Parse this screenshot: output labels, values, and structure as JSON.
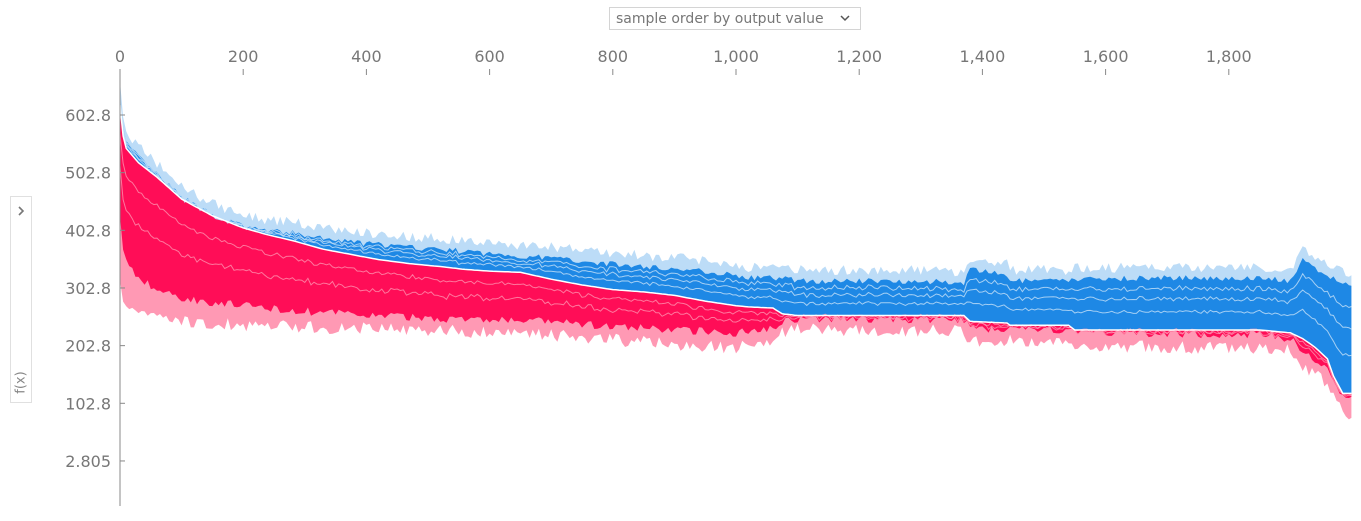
{
  "controls": {
    "order_select_value": "sample order by output value",
    "chevron_icon": "chevron-down-icon",
    "side_toggle_icon": "chevron-right-icon",
    "side_label": "f(x)"
  },
  "chart_data": {
    "type": "area",
    "title": "",
    "xlabel": "",
    "ylabel": "f(x)",
    "xlim": [
      0,
      2000
    ],
    "ylim": [
      -47,
      683
    ],
    "x_ticks": [
      0,
      200,
      400,
      600,
      800,
      1000,
      1200,
      1400,
      1600,
      1800
    ],
    "x_tick_labels": [
      "0",
      "200",
      "400",
      "600",
      "800",
      "1,000",
      "1,200",
      "1,400",
      "1,600",
      "1,800"
    ],
    "y_ticks": [
      602.8,
      502.8,
      402.8,
      302.8,
      202.8,
      102.8,
      2.805
    ],
    "y_tick_labels": [
      "602.8",
      "502.8",
      "402.8",
      "302.8",
      "202.8",
      "102.8",
      "2.805"
    ],
    "colors": {
      "positive": "#ff0d57",
      "positive_light": "#ff99b4",
      "negative": "#1e88e5",
      "negative_light": "#bcdcf7",
      "separator": "#ffffff",
      "axis": "#888888"
    },
    "profile": {
      "x": [
        0,
        3,
        10,
        30,
        60,
        100,
        150,
        200,
        240,
        280,
        330,
        380,
        420,
        470,
        520,
        560,
        600,
        650,
        700,
        750,
        800,
        850,
        900,
        950,
        1000,
        1020,
        1060,
        1075,
        1100,
        1200,
        1300,
        1370,
        1380,
        1440,
        1445,
        1540,
        1550,
        1650,
        1750,
        1850,
        1900,
        1920,
        1940,
        1960,
        1970,
        1985,
        1999
      ],
      "top": [
        645,
        600,
        565,
        540,
        510,
        470,
        440,
        420,
        412,
        408,
        398,
        392,
        388,
        383,
        380,
        376,
        372,
        368,
        365,
        360,
        354,
        350,
        346,
        342,
        335,
        330,
        330,
        332,
        325,
        325,
        325,
        322,
        344,
        336,
        325,
        325,
        328,
        330,
        330,
        330,
        325,
        360,
        345,
        335,
        330,
        320,
        318
      ],
      "fx": [
        620,
        575,
        545,
        520,
        495,
        457,
        428,
        407,
        395,
        385,
        370,
        360,
        352,
        345,
        340,
        335,
        332,
        330,
        318,
        308,
        300,
        296,
        290,
        280,
        272,
        270,
        268,
        258,
        255,
        255,
        255,
        255,
        245,
        242,
        238,
        238,
        230,
        230,
        230,
        230,
        225,
        215,
        200,
        180,
        150,
        120,
        120
      ],
      "red_base": [
        430,
        380,
        350,
        320,
        300,
        285,
        278,
        272,
        268,
        264,
        260,
        257,
        255,
        252,
        250,
        248,
        247,
        246,
        244,
        240,
        235,
        233,
        230,
        228,
        225,
        228,
        235,
        245,
        250,
        248,
        248,
        248,
        232,
        232,
        235,
        230,
        228,
        225,
        222,
        222,
        215,
        195,
        180,
        160,
        140,
        112,
        108
      ],
      "pink_base": [
        320,
        300,
        285,
        272,
        262,
        256,
        252,
        250,
        248,
        246,
        245,
        244,
        243,
        242,
        240,
        238,
        236,
        234,
        232,
        228,
        224,
        220,
        215,
        212,
        210,
        215,
        222,
        235,
        242,
        240,
        240,
        240,
        220,
        220,
        222,
        218,
        215,
        212,
        210,
        210,
        205,
        180,
        165,
        145,
        125,
        100,
        95
      ]
    }
  }
}
